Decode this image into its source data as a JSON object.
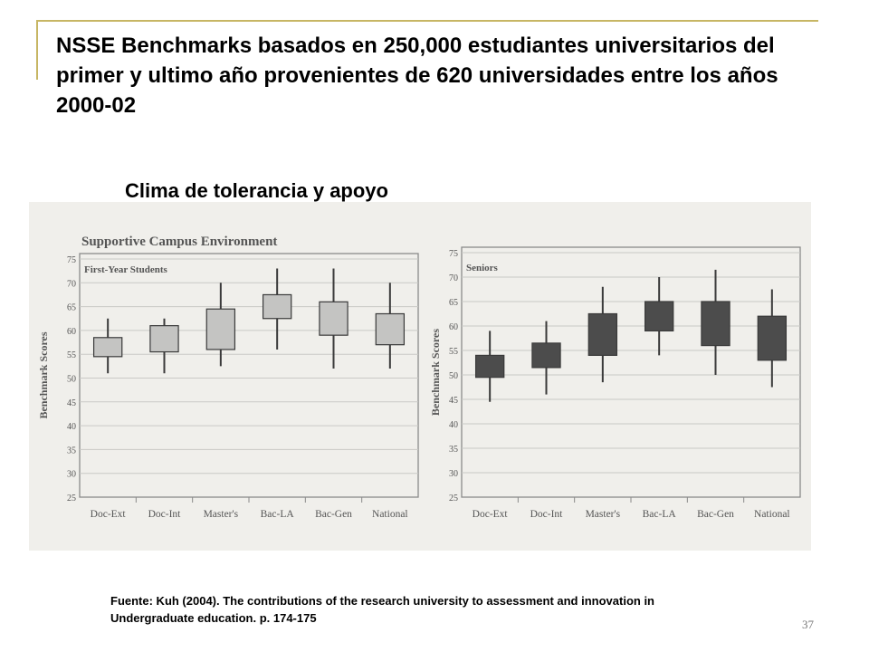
{
  "slide": {
    "title": "NSSE Benchmarks basados en 250,000 estudiantes universitarios del primer y ultimo año provenientes de 620 universidades entre los años 2000-02",
    "subtitle": "Clima de tolerancia y apoyo",
    "caption_line1": "Fuente: Kuh (2004). The contributions of the research university to assessment and innovation in",
    "caption_line2": "Undergraduate education. p. 174-175",
    "page_number": "37",
    "accent_color": "#c7b664"
  },
  "figure": {
    "title": "Supportive Campus Environment"
  },
  "chart_data": [
    {
      "type": "boxplot",
      "panel_label": "First-Year Students",
      "ylabel": "Benchmark Scores",
      "ylim": [
        25,
        75
      ],
      "yticks": [
        "25",
        "30",
        "35",
        "40",
        "45",
        "50",
        "55",
        "60",
        "65",
        "70",
        "75"
      ],
      "categories": [
        "Doc-Ext",
        "Doc-Int",
        "Master's",
        "Bac-LA",
        "Bac-Gen",
        "National"
      ],
      "box_color": "#c4c4c2",
      "low": [
        51,
        51,
        52.5,
        56,
        52,
        52
      ],
      "q1": [
        54.5,
        55.5,
        56,
        62.5,
        59,
        57
      ],
      "q3": [
        58.5,
        61,
        64.5,
        67.5,
        66,
        63.5
      ],
      "high": [
        62.5,
        62.5,
        70,
        73,
        73,
        70
      ]
    },
    {
      "type": "boxplot",
      "panel_label": "Seniors",
      "ylabel": "Benchmark Scores",
      "ylim": [
        25,
        75
      ],
      "yticks": [
        "25",
        "30",
        "35",
        "40",
        "45",
        "50",
        "55",
        "60",
        "65",
        "70",
        "75"
      ],
      "categories": [
        "Doc-Ext",
        "Doc-Int",
        "Master's",
        "Bac-LA",
        "Bac-Gen",
        "National"
      ],
      "box_color": "#4c4c4c",
      "low": [
        44.5,
        46,
        48.5,
        54,
        50,
        47.5
      ],
      "q1": [
        49.5,
        51.5,
        54,
        59,
        56,
        53
      ],
      "q3": [
        54,
        56.5,
        62.5,
        65,
        65,
        62
      ],
      "high": [
        59,
        61,
        68,
        70,
        71.5,
        67.5
      ]
    }
  ]
}
